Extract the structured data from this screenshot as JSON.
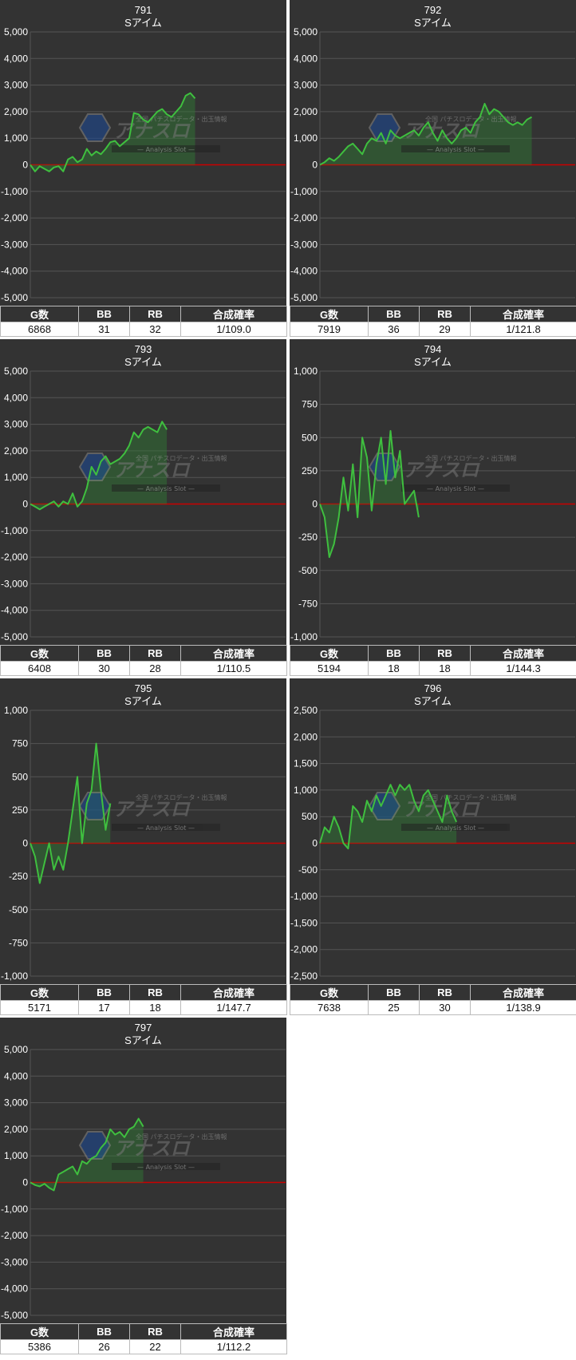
{
  "colors": {
    "panel_bg": "#333333",
    "grid": "#555555",
    "zero_line": "#cc0000",
    "series_line": "#3fbf3f",
    "series_fill": "#2e7d32"
  },
  "watermark": {
    "text": "アナスロ",
    "sub": "— Analysis Slot —",
    "top": "全国 パチスロデータ・出玉情報"
  },
  "table_headers": [
    "G数",
    "BB",
    "RB",
    "合成確率"
  ],
  "chart_data": [
    {
      "type": "line",
      "title": "791",
      "subtitle": "Sアイム",
      "ylim": [
        -5000,
        5000
      ],
      "yticks": [
        5000,
        4000,
        3000,
        2000,
        1000,
        0,
        -1000,
        -2000,
        -3000,
        -4000,
        -5000
      ],
      "yticklabels": [
        "5,000",
        "4,000",
        "3,000",
        "2,000",
        "1,000",
        "0",
        "-1,000",
        "-2,000",
        "-3,000",
        "-4,000",
        "-5,000"
      ],
      "values": [
        0,
        -250,
        -50,
        -150,
        -250,
        -100,
        -50,
        -250,
        200,
        300,
        100,
        200,
        600,
        350,
        500,
        400,
        600,
        850,
        900,
        700,
        850,
        1000,
        1950,
        1900,
        1700,
        1600,
        1800,
        2000,
        2100,
        1900,
        1800,
        2000,
        2200,
        2600,
        2700,
        2500
      ],
      "stats": {
        "games": "6868",
        "bb": "31",
        "rb": "32",
        "rate": "1/109.0"
      }
    },
    {
      "type": "line",
      "title": "792",
      "subtitle": "Sアイム",
      "ylim": [
        -5000,
        5000
      ],
      "yticks": [
        5000,
        4000,
        3000,
        2000,
        1000,
        0,
        -1000,
        -2000,
        -3000,
        -4000,
        -5000
      ],
      "yticklabels": [
        "5,000",
        "4,000",
        "3,000",
        "2,000",
        "1,000",
        "0",
        "-1,000",
        "-2,000",
        "-3,000",
        "-4,000",
        "-5,000"
      ],
      "values": [
        0,
        100,
        250,
        150,
        300,
        500,
        700,
        800,
        600,
        400,
        800,
        1000,
        900,
        1200,
        800,
        1300,
        1100,
        1000,
        1100,
        1200,
        1300,
        1100,
        1400,
        1600,
        1200,
        900,
        1300,
        1000,
        800,
        1000,
        1300,
        1400,
        1200,
        1600,
        1800,
        2300,
        1900,
        2100,
        2000,
        1800,
        1600,
        1500,
        1600,
        1500,
        1700,
        1800
      ],
      "stats": {
        "games": "7919",
        "bb": "36",
        "rb": "29",
        "rate": "1/121.8"
      }
    },
    {
      "type": "line",
      "title": "793",
      "subtitle": "Sアイム",
      "ylim": [
        -5000,
        5000
      ],
      "yticks": [
        5000,
        4000,
        3000,
        2000,
        1000,
        0,
        -1000,
        -2000,
        -3000,
        -4000,
        -5000
      ],
      "yticklabels": [
        "5,000",
        "4,000",
        "3,000",
        "2,000",
        "1,000",
        "0",
        "-1,000",
        "-2,000",
        "-3,000",
        "-4,000",
        "-5,000"
      ],
      "values": [
        0,
        -100,
        -200,
        -100,
        0,
        100,
        -100,
        100,
        0,
        400,
        -100,
        100,
        600,
        1400,
        1100,
        1600,
        1800,
        1500,
        1600,
        1700,
        1900,
        2200,
        2700,
        2500,
        2800,
        2900,
        2800,
        2700,
        3100,
        2800
      ],
      "stats": {
        "games": "6408",
        "bb": "30",
        "rb": "28",
        "rate": "1/110.5"
      }
    },
    {
      "type": "line",
      "title": "794",
      "subtitle": "Sアイム",
      "ylim": [
        -1000,
        1000
      ],
      "yticks": [
        1000,
        750,
        500,
        250,
        0,
        -250,
        -500,
        -750,
        -1000
      ],
      "yticklabels": [
        "1,000",
        "750",
        "500",
        "250",
        "0",
        "-250",
        "-500",
        "-750",
        "-1,000"
      ],
      "values": [
        0,
        -100,
        -400,
        -300,
        -100,
        200,
        -50,
        300,
        -100,
        500,
        350,
        -50,
        300,
        500,
        150,
        550,
        200,
        400,
        0,
        50,
        100,
        -100
      ],
      "stats": {
        "games": "5194",
        "bb": "18",
        "rb": "18",
        "rate": "1/144.3"
      }
    },
    {
      "type": "line",
      "title": "795",
      "subtitle": "Sアイム",
      "ylim": [
        -1000,
        1000
      ],
      "yticks": [
        1000,
        750,
        500,
        250,
        0,
        -250,
        -500,
        -750,
        -1000
      ],
      "yticklabels": [
        "1,000",
        "750",
        "500",
        "250",
        "0",
        "-250",
        "-500",
        "-750",
        "-1,000"
      ],
      "values": [
        0,
        -100,
        -300,
        -150,
        0,
        -200,
        -100,
        -200,
        0,
        250,
        500,
        0,
        300,
        400,
        750,
        400,
        100,
        300
      ],
      "stats": {
        "games": "5171",
        "bb": "17",
        "rb": "18",
        "rate": "1/147.7"
      }
    },
    {
      "type": "line",
      "title": "796",
      "subtitle": "Sアイム",
      "ylim": [
        -2500,
        2500
      ],
      "yticks": [
        2500,
        2000,
        1500,
        1000,
        500,
        0,
        -500,
        -1000,
        -1500,
        -2000,
        -2500
      ],
      "yticklabels": [
        "2,500",
        "2,000",
        "1,500",
        "1,000",
        "500",
        "0",
        "-500",
        "-1,000",
        "-1,500",
        "-2,000",
        "-2,500"
      ],
      "values": [
        0,
        300,
        200,
        500,
        300,
        0,
        -100,
        700,
        600,
        400,
        800,
        600,
        900,
        700,
        900,
        1100,
        900,
        1100,
        1000,
        1100,
        800,
        600,
        900,
        1000,
        800,
        600,
        400,
        900,
        600,
        400
      ],
      "stats": {
        "games": "7638",
        "bb": "25",
        "rb": "30",
        "rate": "1/138.9"
      }
    },
    {
      "type": "line",
      "title": "797",
      "subtitle": "Sアイム",
      "ylim": [
        -5000,
        5000
      ],
      "yticks": [
        5000,
        4000,
        3000,
        2000,
        1000,
        0,
        -1000,
        -2000,
        -3000,
        -4000,
        -5000
      ],
      "yticklabels": [
        "5,000",
        "4,000",
        "3,000",
        "2,000",
        "1,000",
        "0",
        "-1,000",
        "-2,000",
        "-3,000",
        "-4,000",
        "-5,000"
      ],
      "values": [
        0,
        -100,
        -150,
        -50,
        -200,
        -300,
        300,
        400,
        500,
        600,
        300,
        800,
        700,
        900,
        1000,
        1300,
        1500,
        2000,
        1800,
        1900,
        1700,
        2000,
        2100,
        2400,
        2100
      ],
      "stats": {
        "games": "5386",
        "bb": "26",
        "rb": "22",
        "rate": "1/112.2"
      }
    }
  ]
}
